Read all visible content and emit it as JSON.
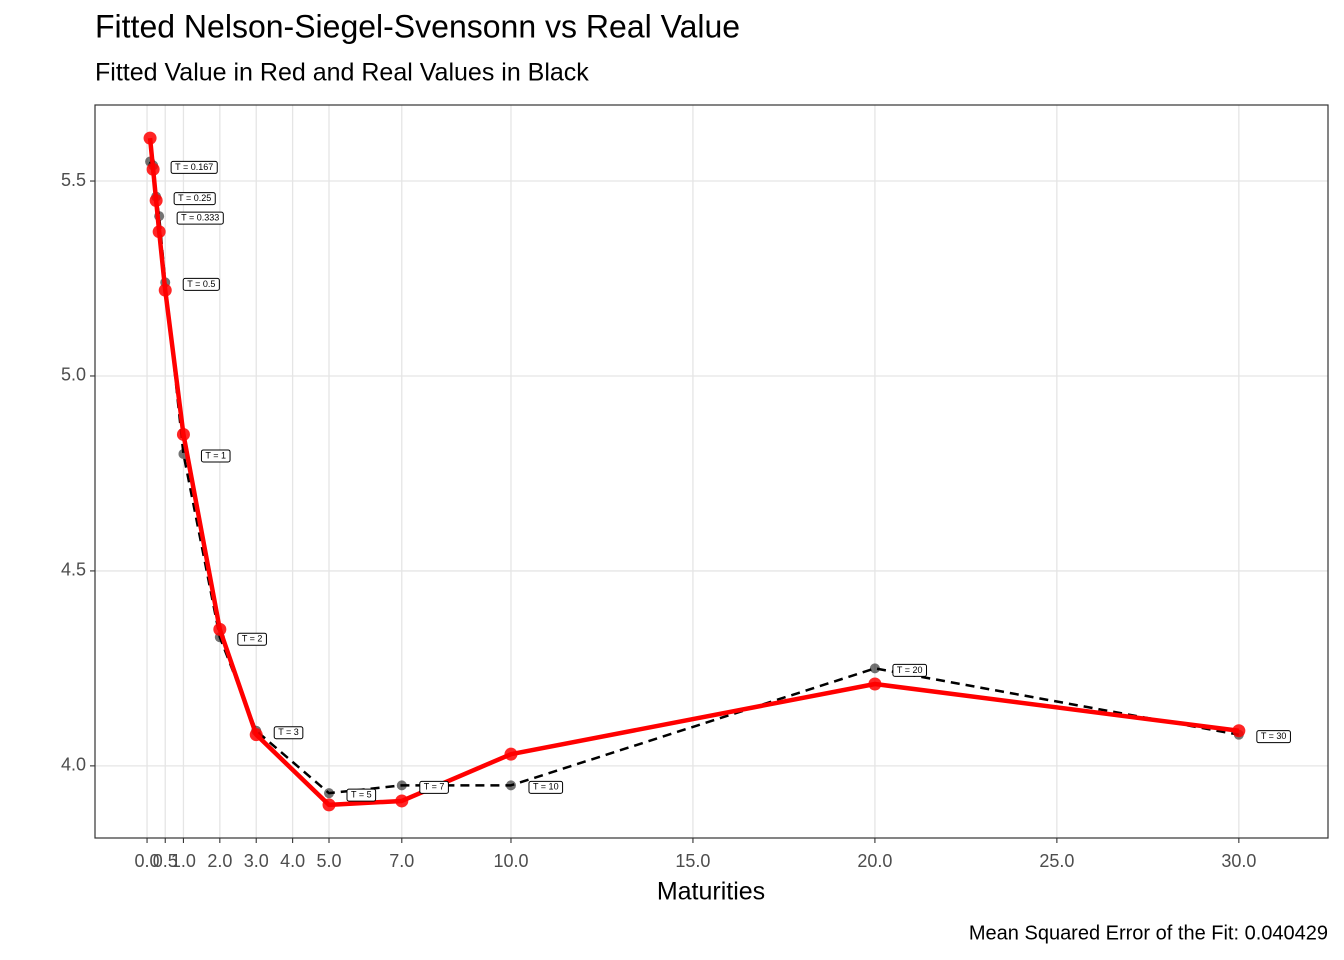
{
  "chart_data": {
    "type": "line",
    "title": "Fitted Nelson-Siegel-Svensonn vs Real Value",
    "subtitle": "Fitted Value in Red and Real Values in Black",
    "x_label": "Maturities",
    "caption": "Mean Squared Error of the Fit: 0.040429",
    "x": [
      0.083,
      0.167,
      0.25,
      0.333,
      0.5,
      1,
      2,
      3,
      5,
      7,
      10,
      20,
      30
    ],
    "point_labels": [
      null,
      "T = 0.167",
      "T = 0.25",
      "T = 0.333",
      "T = 0.5",
      "T = 1",
      "T = 2",
      "T = 3",
      "T = 5",
      "T = 7",
      "T = 10",
      "T = 20",
      "T = 30"
    ],
    "series": [
      {
        "name": "Real",
        "color": "#000000",
        "dashed": true,
        "values": [
          5.55,
          5.54,
          5.46,
          5.41,
          5.24,
          4.8,
          4.33,
          4.09,
          3.93,
          3.95,
          3.95,
          4.25,
          4.08
        ]
      },
      {
        "name": "Fitted",
        "color": "#ff0000",
        "dashed": false,
        "values": [
          5.61,
          5.53,
          5.45,
          5.37,
          5.22,
          4.85,
          4.35,
          4.08,
          3.9,
          3.91,
          4.03,
          4.21,
          4.09
        ]
      }
    ],
    "xlim": [
      -1.43,
      32.45
    ],
    "ylim": [
      3.815,
      5.695
    ],
    "xticks": [
      {
        "value": 0,
        "label": "0.0"
      },
      {
        "value": 0.5,
        "label": "0.5"
      },
      {
        "value": 1,
        "label": "1.0"
      },
      {
        "value": 2,
        "label": "2.0"
      },
      {
        "value": 3,
        "label": "3.0"
      },
      {
        "value": 4,
        "label": "4.0"
      },
      {
        "value": 5,
        "label": "5.0"
      },
      {
        "value": 7,
        "label": "7.0"
      },
      {
        "value": 10,
        "label": "10.0"
      },
      {
        "value": 15,
        "label": "15.0"
      },
      {
        "value": 20,
        "label": "20.0"
      },
      {
        "value": 25,
        "label": "25.0"
      },
      {
        "value": 30,
        "label": "30.0"
      }
    ],
    "yticks": [
      {
        "value": 4,
        "label": "4.0"
      },
      {
        "value": 4.5,
        "label": "4.5"
      },
      {
        "value": 5,
        "label": "5.0"
      },
      {
        "value": 5.5,
        "label": "5.5"
      }
    ],
    "grid": true
  }
}
